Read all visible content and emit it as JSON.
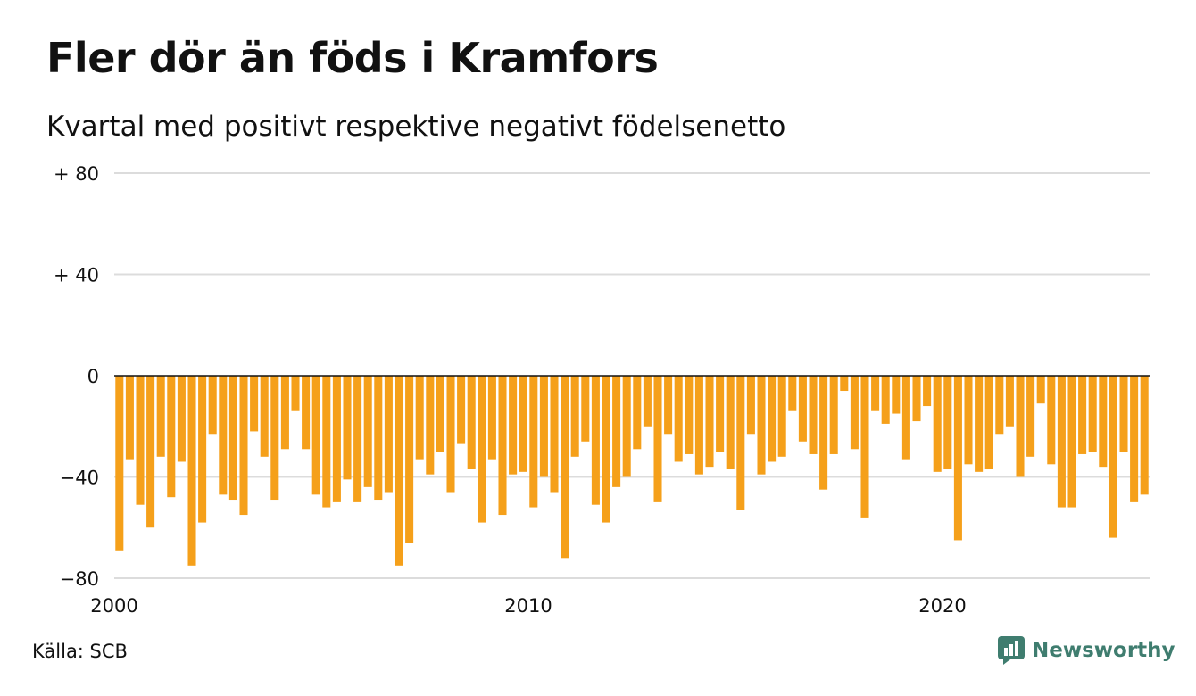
{
  "title": "Fler dör än föds i Kramfors",
  "subtitle": "Kvartal med positivt respektive negativt födelsenetto",
  "source": "Källa: SCB",
  "brand": {
    "name": "Newsworthy",
    "icon": "newsworthy-logo-icon",
    "color": "#3f7d6f"
  },
  "chart_data": {
    "type": "bar",
    "x_start": "2000 Q1",
    "x_ticks": [
      "2000",
      "2010",
      "2020"
    ],
    "y_ticks": [
      {
        "value": 80,
        "label": "+ 80"
      },
      {
        "value": 40,
        "label": "+ 40"
      },
      {
        "value": 0,
        "label": "0"
      },
      {
        "value": -40,
        "label": "−40"
      },
      {
        "value": -80,
        "label": "−80"
      }
    ],
    "ylim": [
      -80,
      80
    ],
    "bar_color": "#f5a01a",
    "grid": true,
    "values": [
      -69,
      -33,
      -51,
      -60,
      -32,
      -48,
      -34,
      -75,
      -58,
      -23,
      -47,
      -49,
      -55,
      -22,
      -32,
      -49,
      -29,
      -14,
      -29,
      -47,
      -52,
      -50,
      -41,
      -50,
      -44,
      -49,
      -46,
      -75,
      -66,
      -33,
      -39,
      -30,
      -46,
      -27,
      -37,
      -58,
      -33,
      -55,
      -39,
      -38,
      -52,
      -40,
      -46,
      -72,
      -32,
      -26,
      -51,
      -58,
      -44,
      -40,
      -29,
      -20,
      -50,
      -23,
      -34,
      -31,
      -39,
      -36,
      -30,
      -37,
      -53,
      -23,
      -39,
      -34,
      -32,
      -14,
      -26,
      -31,
      -45,
      -31,
      -6,
      -29,
      -56,
      -14,
      -19,
      -15,
      -33,
      -18,
      -12,
      -38,
      -37,
      -65,
      -35,
      -38,
      -37,
      -23,
      -20,
      -40,
      -32,
      -11,
      -35,
      -52,
      -52,
      -31,
      -30,
      -36,
      -64,
      -30,
      -50,
      -47
    ]
  }
}
